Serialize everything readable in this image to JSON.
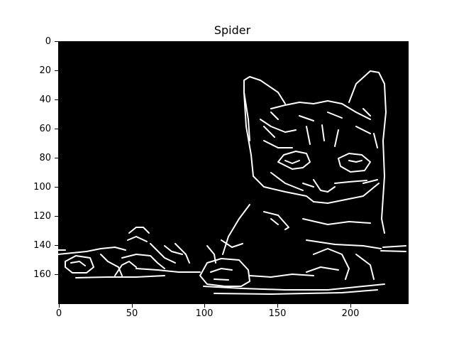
{
  "figure": {
    "title": "Spider",
    "description_type": "edge-detected image of a kitten shown with matplotlib imshow"
  },
  "image_axes": {
    "x_ticks": [
      "0",
      "50",
      "100",
      "150",
      "200"
    ],
    "x_tick_values": [
      0,
      50,
      100,
      150,
      200
    ],
    "y_ticks": [
      "0",
      "20",
      "40",
      "60",
      "80",
      "100",
      "120",
      "140",
      "160"
    ],
    "y_tick_values": [
      0,
      20,
      40,
      60,
      80,
      100,
      120,
      140,
      160
    ],
    "xlim": [
      0,
      240
    ],
    "ylim": [
      180,
      0
    ],
    "background_color": "#000000",
    "edge_color": "#ffffff"
  }
}
